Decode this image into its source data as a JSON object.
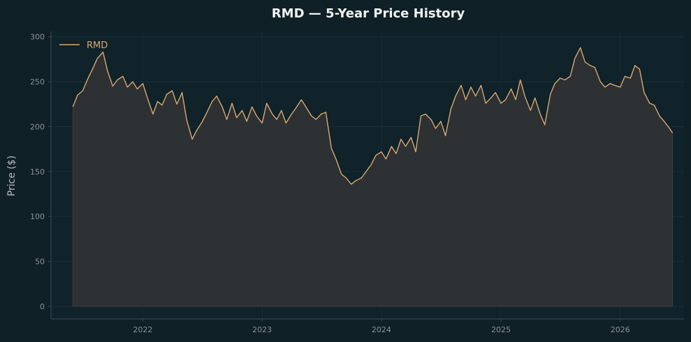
{
  "chart_data": {
    "type": "area",
    "title": "RMD — 5-Year Price History",
    "xlabel": "",
    "ylabel": "Price ($)",
    "ylim": [
      -14,
      306
    ],
    "xlim": [
      "2021-03-26",
      "2026-07-15"
    ],
    "x_ticks": [
      "2022",
      "2023",
      "2024",
      "2025",
      "2026"
    ],
    "y_ticks": [
      0,
      50,
      100,
      150,
      200,
      250,
      300
    ],
    "grid": true,
    "legend": {
      "position": "top-left"
    },
    "colors": {
      "background": "#0f2027",
      "plot_background": "#10222a",
      "line": "#d8a86f",
      "fill": "#2d3133",
      "axis": "#3b4a52"
    },
    "series": [
      {
        "name": "RMD",
        "x": [
          "2021-06-01",
          "2021-06-15",
          "2021-07-01",
          "2021-07-15",
          "2021-08-01",
          "2021-08-15",
          "2021-09-01",
          "2021-09-15",
          "2021-10-01",
          "2021-10-15",
          "2021-11-01",
          "2021-11-15",
          "2021-12-01",
          "2021-12-15",
          "2022-01-01",
          "2022-01-15",
          "2022-02-01",
          "2022-02-15",
          "2022-03-01",
          "2022-03-15",
          "2022-04-01",
          "2022-04-15",
          "2022-05-01",
          "2022-05-15",
          "2022-06-01",
          "2022-06-15",
          "2022-07-01",
          "2022-07-15",
          "2022-08-01",
          "2022-08-15",
          "2022-09-01",
          "2022-09-15",
          "2022-10-01",
          "2022-10-15",
          "2022-11-01",
          "2022-11-15",
          "2022-12-01",
          "2022-12-15",
          "2023-01-01",
          "2023-01-15",
          "2023-02-01",
          "2023-02-15",
          "2023-03-01",
          "2023-03-15",
          "2023-04-01",
          "2023-04-15",
          "2023-05-01",
          "2023-05-15",
          "2023-06-01",
          "2023-06-15",
          "2023-07-01",
          "2023-07-15",
          "2023-08-01",
          "2023-08-15",
          "2023-09-01",
          "2023-09-15",
          "2023-10-01",
          "2023-10-15",
          "2023-11-01",
          "2023-11-15",
          "2023-12-01",
          "2023-12-15",
          "2024-01-01",
          "2024-01-15",
          "2024-02-01",
          "2024-02-15",
          "2024-03-01",
          "2024-03-15",
          "2024-04-01",
          "2024-04-15",
          "2024-05-01",
          "2024-05-15",
          "2024-06-01",
          "2024-06-15",
          "2024-07-01",
          "2024-07-15",
          "2024-08-01",
          "2024-08-15",
          "2024-09-01",
          "2024-09-15",
          "2024-10-01",
          "2024-10-15",
          "2024-11-01",
          "2024-11-15",
          "2024-12-01",
          "2024-12-15",
          "2025-01-01",
          "2025-01-15",
          "2025-02-01",
          "2025-02-15",
          "2025-03-01",
          "2025-03-15",
          "2025-04-01",
          "2025-04-15",
          "2025-05-01",
          "2025-05-15",
          "2025-06-01",
          "2025-06-15",
          "2025-07-01",
          "2025-07-15",
          "2025-08-01",
          "2025-08-15",
          "2025-09-01",
          "2025-09-15",
          "2025-10-01",
          "2025-10-15",
          "2025-11-01",
          "2025-11-15",
          "2025-12-01",
          "2025-12-15",
          "2026-01-01",
          "2026-01-15",
          "2026-02-01",
          "2026-02-15",
          "2026-03-01",
          "2026-03-15",
          "2026-04-01",
          "2026-04-15",
          "2026-05-01",
          "2026-05-15",
          "2026-06-01",
          "2026-06-10"
        ],
        "values": [
          222,
          235,
          240,
          252,
          265,
          276,
          283,
          262,
          245,
          252,
          256,
          244,
          250,
          242,
          248,
          232,
          214,
          228,
          224,
          236,
          240,
          225,
          238,
          208,
          186,
          196,
          205,
          215,
          228,
          234,
          222,
          208,
          226,
          210,
          218,
          206,
          222,
          212,
          204,
          226,
          214,
          208,
          218,
          204,
          214,
          221,
          230,
          222,
          212,
          208,
          214,
          216,
          176,
          164,
          147,
          143,
          136,
          140,
          143,
          150,
          158,
          168,
          172,
          164,
          178,
          170,
          186,
          178,
          188,
          172,
          212,
          214,
          208,
          198,
          206,
          190,
          220,
          234,
          246,
          230,
          244,
          234,
          246,
          226,
          232,
          238,
          226,
          230,
          242,
          230,
          252,
          234,
          218,
          232,
          214,
          202,
          236,
          248,
          254,
          252,
          256,
          276,
          288,
          272,
          268,
          266,
          250,
          244,
          248,
          246,
          244,
          256,
          254,
          268,
          264,
          238,
          226,
          224,
          212,
          206,
          198,
          193
        ]
      }
    ]
  }
}
